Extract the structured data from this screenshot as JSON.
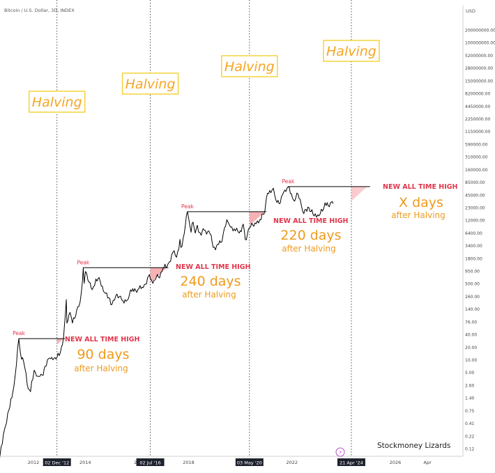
{
  "header": {
    "title": "Bitcoin / U.S. Dollar, 3D, INDEX"
  },
  "axis": {
    "currency_label": "USD"
  },
  "watermark": "Stockmoney Lizards",
  "chart_data": {
    "type": "line",
    "scale": "log",
    "y_ticks": [
      "200000000.00",
      "100000000.00",
      "52000000.00",
      "28000000.00",
      "15000000.00",
      "8200000.00",
      "4450000.00",
      "2250000.00",
      "1150000.00",
      "590000.00",
      "310000.00",
      "160000.00",
      "85000.00",
      "45000.00",
      "23000.00",
      "12000.00",
      "6400.00",
      "3400.00",
      "1800.00",
      "950.00",
      "500.00",
      "260.00",
      "140.00",
      "76.00",
      "40.00",
      "20.00",
      "10.00",
      "5.00",
      "2.60",
      "1.40",
      "0.75",
      "0.41",
      "0.22",
      "0.12"
    ],
    "x_ticks": [
      {
        "label": "2012",
        "date": "2012-01-01"
      },
      {
        "label": "2014",
        "date": "2014-01-01"
      },
      {
        "label": "20",
        "date": "2016-01-01"
      },
      {
        "label": "2018",
        "date": "2018-01-01"
      },
      {
        "label": "2022",
        "date": "2022-01-01"
      },
      {
        "label": "2026",
        "date": "2026-01-01"
      },
      {
        "label": "Apr",
        "date": "2027-04-01"
      }
    ],
    "halvings": [
      {
        "date": "2012-11-28",
        "label": "Halving",
        "axis_label": "02 Dec '12"
      },
      {
        "date": "2016-07-09",
        "label": "Halving",
        "axis_label": "02 Jul '16"
      },
      {
        "date": "2020-05-11",
        "label": "Halving",
        "axis_label": "03 May '20"
      },
      {
        "date": "2024-04-20",
        "label": "Halving",
        "axis_label": "21 Apr '24"
      }
    ],
    "cycles": [
      {
        "peak_label": "Peak",
        "peak_date": "2011-06-08",
        "peak_price": 32,
        "ath_date": "2013-02-28",
        "headline": "NEW ALL TIME HIGH",
        "days": "90 days",
        "suffix": "after Halving"
      },
      {
        "peak_label": "Peak",
        "peak_date": "2013-12-04",
        "peak_price": 1150,
        "ath_date": "2017-03-01",
        "headline": "NEW ALL TIME HIGH",
        "days": "240 days",
        "suffix": "after Halving"
      },
      {
        "peak_label": "Peak",
        "peak_date": "2017-12-17",
        "peak_price": 19500,
        "ath_date": "2020-12-16",
        "headline": "NEW ALL TIME HIGH",
        "days": "220 days",
        "suffix": "after Halving"
      },
      {
        "peak_label": "Peak",
        "peak_date": "2021-11-10",
        "peak_price": 69000,
        "ath_date": "2024-12-01",
        "headline": "NEW ALL TIME HIGH",
        "days": "X days",
        "suffix": "after Halving"
      }
    ],
    "price_series": [
      [
        "2010-09-01",
        0.06
      ],
      [
        "2010-11-01",
        0.25
      ],
      [
        "2011-02-01",
        1.0
      ],
      [
        "2011-04-01",
        3
      ],
      [
        "2011-06-08",
        32
      ],
      [
        "2011-07-01",
        15
      ],
      [
        "2011-08-15",
        10
      ],
      [
        "2011-10-20",
        2.5
      ],
      [
        "2011-11-20",
        2.2
      ],
      [
        "2012-01-10",
        6.5
      ],
      [
        "2012-03-01",
        4.8
      ],
      [
        "2012-05-01",
        5.1
      ],
      [
        "2012-08-15",
        12
      ],
      [
        "2012-10-01",
        11
      ],
      [
        "2012-11-28",
        12.3
      ],
      [
        "2013-01-15",
        16
      ],
      [
        "2013-02-28",
        33
      ],
      [
        "2013-04-09",
        230
      ],
      [
        "2013-04-18",
        70
      ],
      [
        "2013-06-01",
        120
      ],
      [
        "2013-07-05",
        70
      ],
      [
        "2013-09-01",
        130
      ],
      [
        "2013-10-20",
        200
      ],
      [
        "2013-11-15",
        420
      ],
      [
        "2013-12-04",
        1150
      ],
      [
        "2013-12-18",
        520
      ],
      [
        "2014-01-05",
        950
      ],
      [
        "2014-02-25",
        550
      ],
      [
        "2014-04-10",
        380
      ],
      [
        "2014-06-01",
        650
      ],
      [
        "2014-08-01",
        580
      ],
      [
        "2014-10-01",
        330
      ],
      [
        "2015-01-14",
        180
      ],
      [
        "2015-03-10",
        280
      ],
      [
        "2015-06-01",
        225
      ],
      [
        "2015-08-20",
        225
      ],
      [
        "2015-11-04",
        400
      ],
      [
        "2016-01-15",
        380
      ],
      [
        "2016-04-01",
        420
      ],
      [
        "2016-06-16",
        760
      ],
      [
        "2016-07-09",
        650
      ],
      [
        "2016-09-01",
        610
      ],
      [
        "2016-11-01",
        720
      ],
      [
        "2017-01-04",
        1100
      ],
      [
        "2017-03-01",
        1200
      ],
      [
        "2017-05-25",
        2500
      ],
      [
        "2017-07-15",
        1950
      ],
      [
        "2017-09-01",
        4800
      ],
      [
        "2017-09-15",
        3200
      ],
      [
        "2017-11-01",
        6500
      ],
      [
        "2017-12-17",
        19500
      ],
      [
        "2018-02-06",
        6900
      ],
      [
        "2018-03-05",
        11500
      ],
      [
        "2018-04-06",
        6600
      ],
      [
        "2018-05-05",
        9800
      ],
      [
        "2018-06-29",
        5900
      ],
      [
        "2018-07-25",
        8300
      ],
      [
        "2018-11-01",
        6300
      ],
      [
        "2018-12-15",
        3200
      ],
      [
        "2019-02-01",
        3450
      ],
      [
        "2019-04-01",
        4100
      ],
      [
        "2019-06-26",
        13000
      ],
      [
        "2019-08-01",
        10000
      ],
      [
        "2019-10-25",
        7400
      ],
      [
        "2019-12-18",
        6600
      ],
      [
        "2020-02-13",
        10400
      ],
      [
        "2020-03-13",
        4800
      ],
      [
        "2020-05-11",
        8600
      ],
      [
        "2020-07-27",
        11000
      ],
      [
        "2020-10-21",
        13000
      ],
      [
        "2020-12-16",
        21000
      ],
      [
        "2021-01-08",
        41000
      ],
      [
        "2021-02-21",
        57000
      ],
      [
        "2021-04-14",
        64000
      ],
      [
        "2021-05-19",
        35000
      ],
      [
        "2021-07-20",
        30000
      ],
      [
        "2021-09-06",
        52000
      ],
      [
        "2021-11-10",
        69000
      ],
      [
        "2022-01-24",
        35000
      ],
      [
        "2022-03-28",
        47500
      ],
      [
        "2022-05-12",
        28000
      ],
      [
        "2022-06-18",
        17600
      ],
      [
        "2022-08-14",
        24500
      ],
      [
        "2022-11-09",
        15700
      ],
      [
        "2023-01-01",
        16600
      ],
      [
        "2023-03-10",
        20000
      ],
      [
        "2023-04-14",
        30500
      ],
      [
        "2023-06-15",
        25000
      ],
      [
        "2023-07-13",
        31500
      ],
      [
        "2023-08-05",
        29200
      ]
    ],
    "colors": {
      "line": "#000000",
      "resistance": "#000000",
      "fill": "#f4a3a8",
      "halving_text": "#f5a623",
      "halving_border": "#f5d33a",
      "headline": "#e0364a",
      "days": "#ef9a1c"
    }
  }
}
